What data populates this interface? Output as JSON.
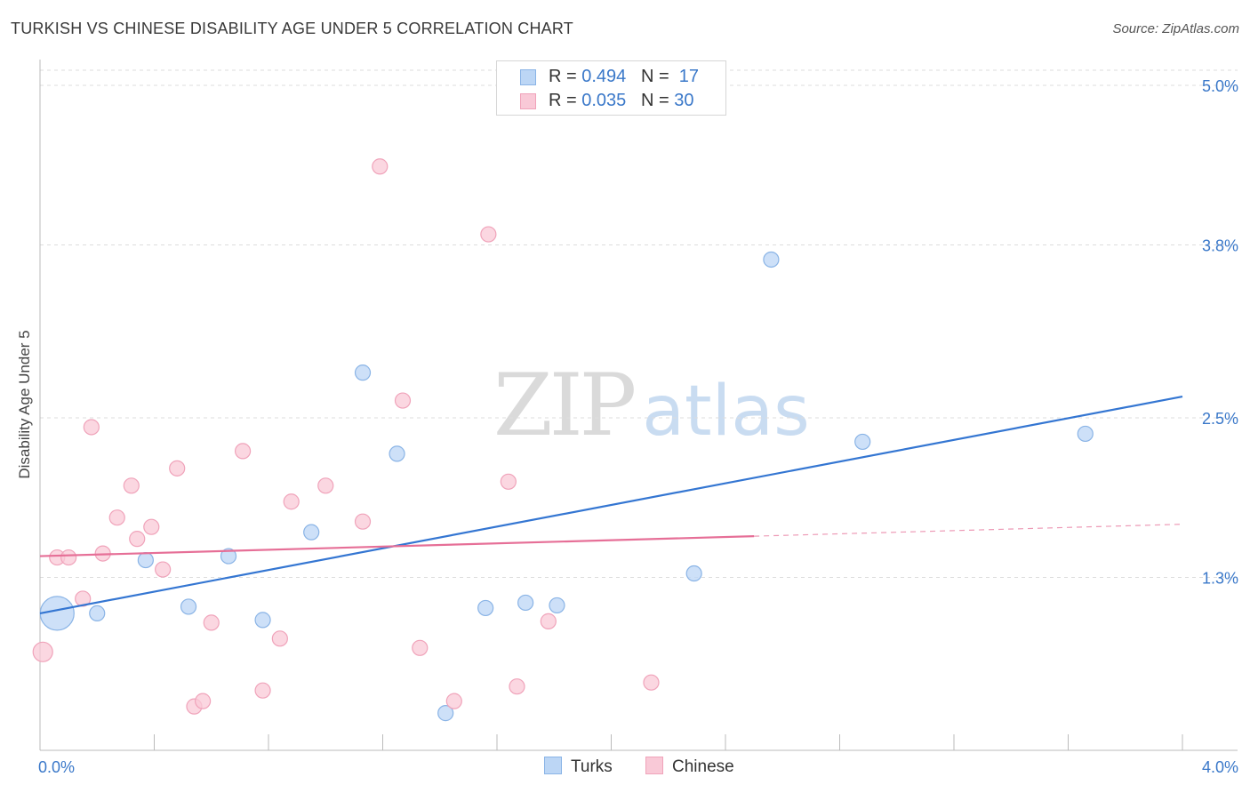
{
  "header": {
    "title": "TURKISH VS CHINESE DISABILITY AGE UNDER 5 CORRELATION CHART",
    "source": "Source: ZipAtlas.com"
  },
  "watermark": {
    "zip": "ZIP",
    "atlas": "atlas"
  },
  "legend_top": {
    "rows": [
      {
        "r_label": "R = ",
        "r_value": "0.494",
        "n_label": "N = ",
        "n_value": "17"
      },
      {
        "r_label": "R = ",
        "r_value": "0.035",
        "n_label": "N = ",
        "n_value": "30"
      }
    ]
  },
  "legend_bottom": {
    "items": [
      "Turks",
      "Chinese"
    ]
  },
  "colors": {
    "turks_fill": "#bcd6f5",
    "turks_stroke": "#8ab4e6",
    "turks_line": "#3476d2",
    "chinese_fill": "#f9c9d7",
    "chinese_stroke": "#f0a3ba",
    "chinese_line": "#e66f97",
    "tick_label": "#3a78c9",
    "grid": "#dddddd"
  },
  "chart_data": {
    "type": "scatter",
    "title": "TURKISH VS CHINESE DISABILITY AGE UNDER 5 CORRELATION CHART",
    "xlabel": "",
    "ylabel": "Disability Age Under 5",
    "xlim": [
      0.0,
      4.0
    ],
    "ylim": [
      0.0,
      5.0
    ],
    "x_tick_labels": [
      "0.0%",
      "4.0%"
    ],
    "y_ticks": [
      1.3,
      2.5,
      3.8,
      5.0
    ],
    "y_tick_labels": [
      "1.3%",
      "2.5%",
      "3.8%",
      "5.0%"
    ],
    "grid": "horizontal dashed",
    "legend_position": "top-center",
    "series": [
      {
        "name": "Turks",
        "r": 0.494,
        "n": 17,
        "points": [
          {
            "x": 0.06,
            "y": 1.03,
            "size": "large"
          },
          {
            "x": 0.2,
            "y": 1.03
          },
          {
            "x": 0.37,
            "y": 1.43
          },
          {
            "x": 0.52,
            "y": 1.08
          },
          {
            "x": 0.66,
            "y": 1.46
          },
          {
            "x": 0.78,
            "y": 0.98
          },
          {
            "x": 0.95,
            "y": 1.64
          },
          {
            "x": 1.13,
            "y": 2.84
          },
          {
            "x": 1.25,
            "y": 2.23
          },
          {
            "x": 1.42,
            "y": 0.28
          },
          {
            "x": 1.56,
            "y": 1.07
          },
          {
            "x": 1.7,
            "y": 1.11
          },
          {
            "x": 1.81,
            "y": 1.09
          },
          {
            "x": 2.29,
            "y": 1.33
          },
          {
            "x": 2.56,
            "y": 3.69
          },
          {
            "x": 2.88,
            "y": 2.32
          },
          {
            "x": 3.66,
            "y": 2.38
          }
        ],
        "trend": {
          "x0": 0.0,
          "y0": 1.03,
          "x1": 4.0,
          "y1": 2.66,
          "dashed_from": null
        }
      },
      {
        "name": "Chinese",
        "r": 0.035,
        "n": 30,
        "points": [
          {
            "x": 0.01,
            "y": 0.74
          },
          {
            "x": 0.06,
            "y": 1.45
          },
          {
            "x": 0.1,
            "y": 1.45
          },
          {
            "x": 0.15,
            "y": 1.14
          },
          {
            "x": 0.18,
            "y": 2.43
          },
          {
            "x": 0.22,
            "y": 1.48
          },
          {
            "x": 0.27,
            "y": 1.75
          },
          {
            "x": 0.32,
            "y": 1.99
          },
          {
            "x": 0.34,
            "y": 1.59
          },
          {
            "x": 0.39,
            "y": 1.68
          },
          {
            "x": 0.43,
            "y": 1.36
          },
          {
            "x": 0.48,
            "y": 2.12
          },
          {
            "x": 0.54,
            "y": 0.33
          },
          {
            "x": 0.57,
            "y": 0.37
          },
          {
            "x": 0.6,
            "y": 0.96
          },
          {
            "x": 0.71,
            "y": 2.25
          },
          {
            "x": 0.78,
            "y": 0.45
          },
          {
            "x": 0.84,
            "y": 0.84
          },
          {
            "x": 0.88,
            "y": 1.87
          },
          {
            "x": 1.0,
            "y": 1.99
          },
          {
            "x": 1.13,
            "y": 1.72
          },
          {
            "x": 1.19,
            "y": 4.39
          },
          {
            "x": 1.27,
            "y": 2.63
          },
          {
            "x": 1.33,
            "y": 0.77
          },
          {
            "x": 1.45,
            "y": 0.37
          },
          {
            "x": 1.57,
            "y": 3.88
          },
          {
            "x": 1.64,
            "y": 2.02
          },
          {
            "x": 1.67,
            "y": 0.48
          },
          {
            "x": 1.78,
            "y": 0.97
          },
          {
            "x": 2.14,
            "y": 0.51
          }
        ],
        "trend": {
          "x0": 0.0,
          "y0": 1.46,
          "x1": 4.0,
          "y1": 1.7,
          "dashed_from": 2.5
        }
      }
    ]
  }
}
